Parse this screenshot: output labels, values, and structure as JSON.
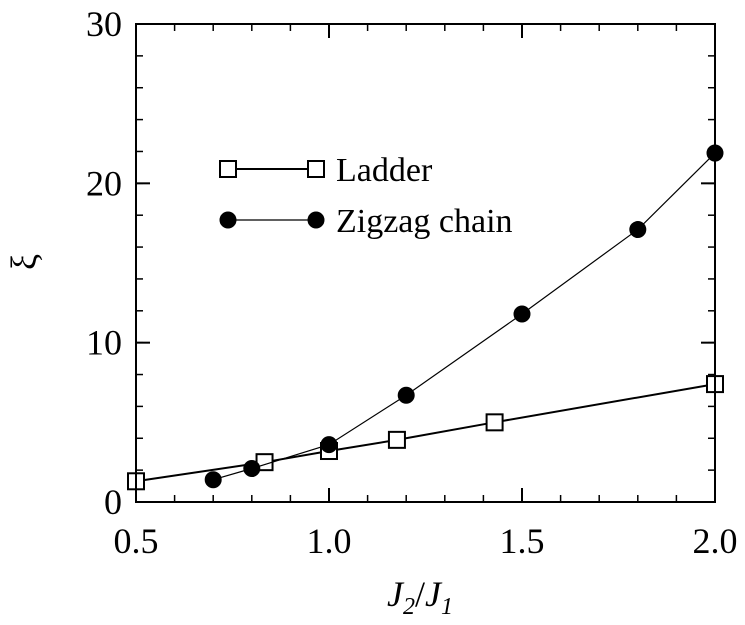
{
  "chart_data": {
    "type": "line",
    "xlabel": {
      "main": "J",
      "sub1": "2",
      "sep": "/",
      "main2": "J",
      "sub2": "1"
    },
    "ylabel": "ξ",
    "xlim": [
      0.5,
      2.0
    ],
    "ylim": [
      0,
      30
    ],
    "xticks": [
      "0.5",
      "1.0",
      "1.5",
      "2.0"
    ],
    "xtick_values": [
      0.5,
      1.0,
      1.5,
      2.0
    ],
    "yticks": [
      "0",
      "10",
      "20",
      "30"
    ],
    "ytick_values": [
      0,
      10,
      20,
      30
    ],
    "x_minor_step": 0.1,
    "y_minor_step": 2,
    "grid": false,
    "legend_position": "upper-left",
    "series": [
      {
        "name": "Ladder",
        "marker": "open-square",
        "color": "#000000",
        "x": [
          0.5,
          0.833,
          1.0,
          1.176,
          1.429,
          2.0
        ],
        "y": [
          1.3,
          2.5,
          3.2,
          3.9,
          5.0,
          7.4
        ]
      },
      {
        "name": "Zigzag chain",
        "marker": "filled-circle",
        "color": "#000000",
        "x": [
          0.7,
          0.8,
          1.0,
          1.2,
          1.5,
          1.8,
          2.0
        ],
        "y": [
          1.4,
          2.1,
          3.6,
          6.7,
          11.8,
          17.1,
          21.9
        ]
      }
    ]
  }
}
